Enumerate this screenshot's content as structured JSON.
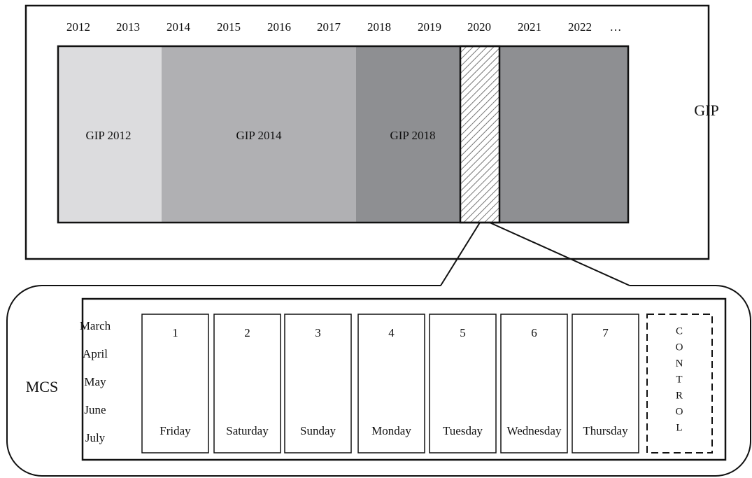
{
  "years": [
    "2012",
    "2013",
    "2014",
    "2015",
    "2016",
    "2017",
    "2018",
    "2019",
    "2020",
    "2021",
    "2022",
    "…"
  ],
  "blocks": [
    "GIP 2012",
    "GIP 2014",
    "GIP 2018"
  ],
  "gip_label": "GIP",
  "mcs_label": "MCS",
  "months": [
    "March",
    "April",
    "May",
    "June",
    "July"
  ],
  "days": [
    {
      "number": "1",
      "name": "Friday"
    },
    {
      "number": "2",
      "name": "Saturday"
    },
    {
      "number": "3",
      "name": "Sunday"
    },
    {
      "number": "4",
      "name": "Monday"
    },
    {
      "number": "5",
      "name": "Tuesday"
    },
    {
      "number": "6",
      "name": "Wednesday"
    },
    {
      "number": "7",
      "name": "Thursday"
    }
  ],
  "control_letters": [
    "C",
    "O",
    "N",
    "T",
    "R",
    "O",
    "L"
  ]
}
